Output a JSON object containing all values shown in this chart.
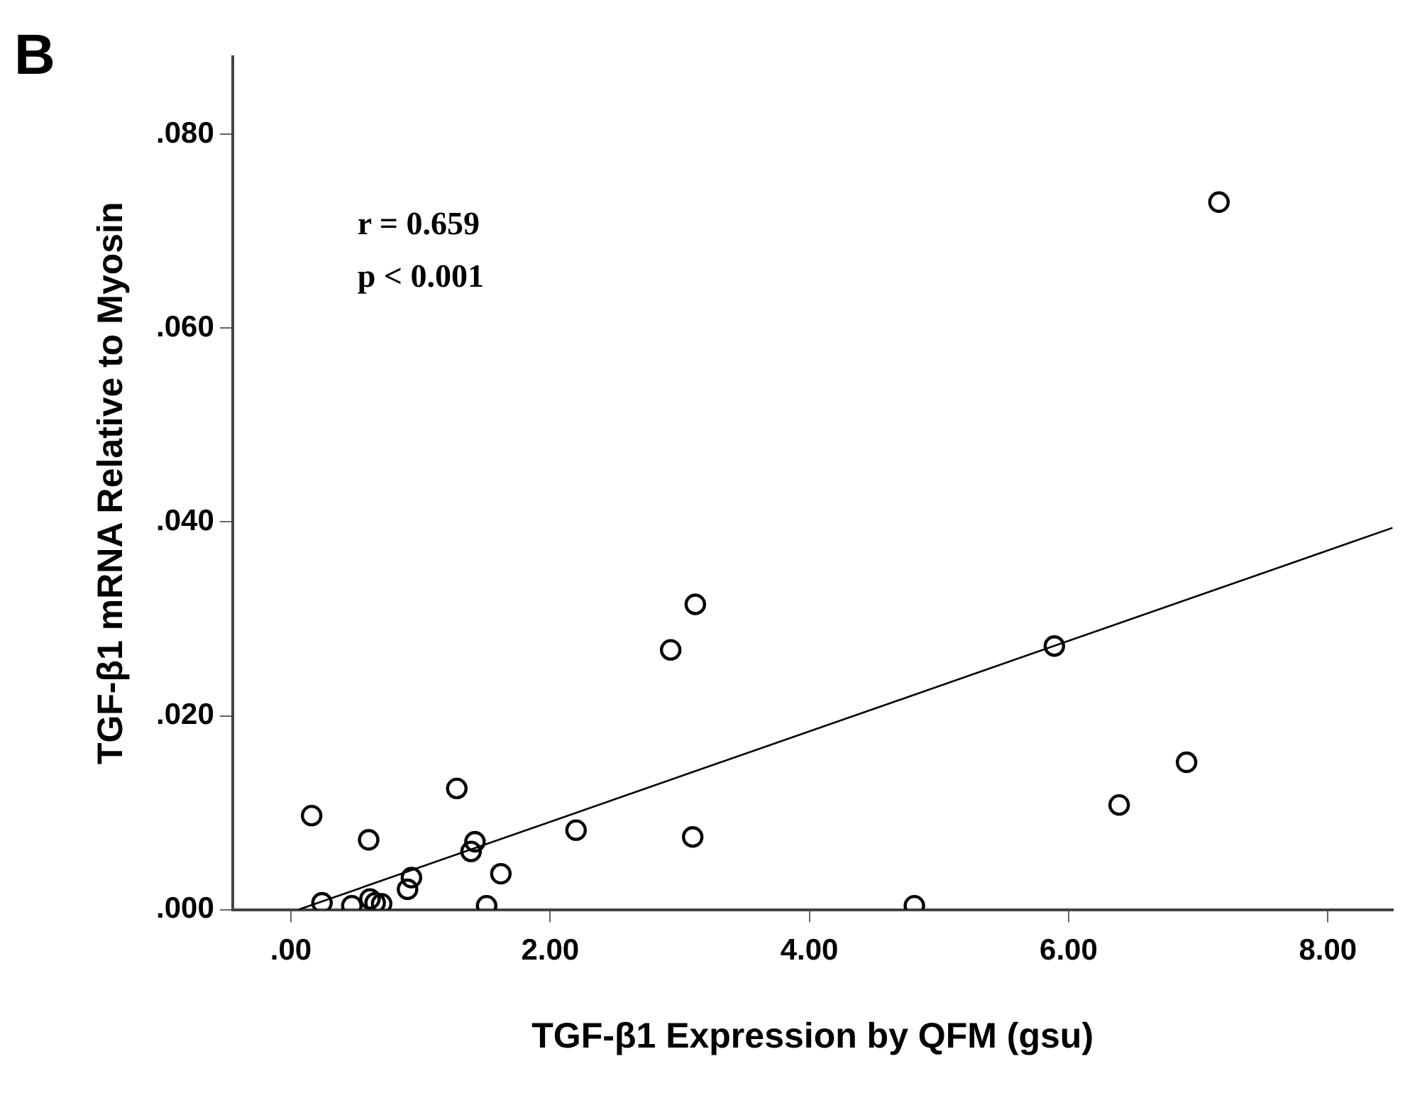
{
  "chart_data": {
    "type": "scatter",
    "title": "B",
    "xlabel": "TGF-β1 Expression by QFM (gsu)",
    "ylabel": "TGF-β1 mRNA Relative to Myosin",
    "annotations": [
      "r = 0.659",
      "p < 0.001"
    ],
    "xlim": [
      -0.45,
      8.5
    ],
    "ylim": [
      0,
      0.088
    ],
    "xticks": [
      {
        "value": 0,
        "label": ".00"
      },
      {
        "value": 2,
        "label": "2.00"
      },
      {
        "value": 4,
        "label": "4.00"
      },
      {
        "value": 6,
        "label": "6.00"
      },
      {
        "value": 8,
        "label": "8.00"
      }
    ],
    "yticks": [
      {
        "value": 0,
        "label": ".000"
      },
      {
        "value": 0.02,
        "label": ".020"
      },
      {
        "value": 0.04,
        "label": ".040"
      },
      {
        "value": 0.06,
        "label": ".060"
      },
      {
        "value": 0.08,
        "label": ".080"
      }
    ],
    "grid": false,
    "legend": false,
    "marker": "circle",
    "series": [
      {
        "color": "#000000",
        "x": [
          7.16,
          3.12,
          2.93,
          5.89,
          6.91,
          6.39,
          3.1,
          2.2,
          0.16,
          0.6,
          1.28,
          1.42,
          1.39,
          1.62,
          0.93,
          0.9,
          1.51,
          4.81,
          0.24,
          0.47,
          0.61,
          0.65,
          0.7
        ],
        "values": [
          0.073,
          0.0315,
          0.0268,
          0.0272,
          0.0152,
          0.0108,
          0.0075,
          0.0082,
          0.0097,
          0.0072,
          0.0125,
          0.007,
          0.006,
          0.0037,
          0.0033,
          0.0021,
          0.0004,
          0.0004,
          0.0007,
          0.0004,
          0.0011,
          0.0007,
          0.0006
        ]
      },
      {
        "type": "line",
        "color": "#000000",
        "x": [
          0.06,
          8.5
        ],
        "values": [
          0,
          0.0394
        ],
        "marker": "none",
        "line_style": "solid"
      }
    ]
  }
}
